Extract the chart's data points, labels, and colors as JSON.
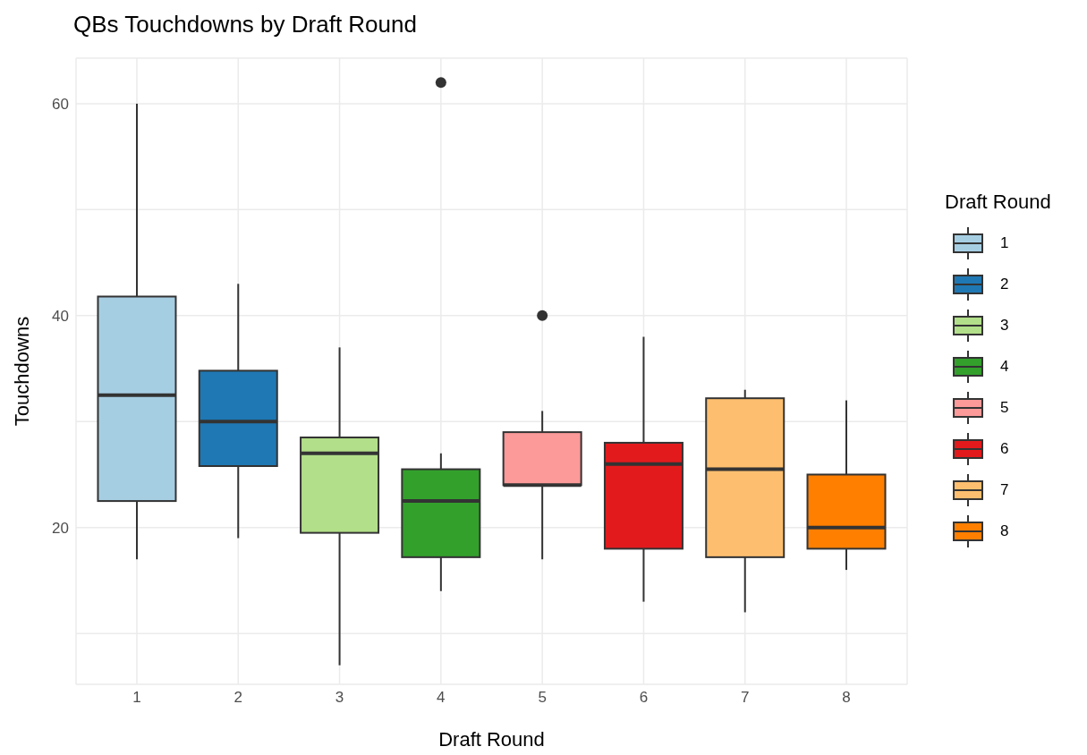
{
  "chart_data": {
    "type": "box",
    "title": "QBs Touchdowns by Draft Round",
    "xlabel": "Draft Round",
    "ylabel": "Touchdowns",
    "legend_title": "Draft Round",
    "legend": "right",
    "grid": true,
    "categories": [
      "1",
      "2",
      "3",
      "4",
      "5",
      "6",
      "7",
      "8"
    ],
    "series": [
      {
        "name": "1",
        "color": "#a6cee3",
        "boxes": [
          {
            "low": 17,
            "q1": 22.5,
            "median": 32.5,
            "q3": 41.8,
            "high": 60
          },
          null,
          null,
          null,
          null,
          null,
          null,
          null
        ]
      },
      {
        "name": "2",
        "color": "#1f78b4",
        "boxes": [
          null,
          {
            "low": 19,
            "q1": 25.8,
            "median": 30,
            "q3": 34.8,
            "high": 43
          },
          null,
          null,
          null,
          null,
          null,
          null
        ]
      },
      {
        "name": "3",
        "color": "#b2df8a",
        "boxes": [
          null,
          null,
          {
            "low": 7,
            "q1": 19.5,
            "median": 27,
            "q3": 28.5,
            "high": 37
          },
          null,
          null,
          null,
          null,
          null
        ]
      },
      {
        "name": "4",
        "color": "#33a02c",
        "boxes": [
          null,
          null,
          null,
          {
            "low": 14,
            "q1": 17.2,
            "median": 22.5,
            "q3": 25.5,
            "high": 27,
            "outliers": [
              62
            ]
          },
          null,
          null,
          null,
          null
        ]
      },
      {
        "name": "5",
        "color": "#fb9a99",
        "boxes": [
          null,
          null,
          null,
          null,
          {
            "low": 17,
            "q1": 24,
            "median": 24,
            "q3": 29,
            "high": 31,
            "outliers": [
              40
            ]
          },
          null,
          null,
          null
        ]
      },
      {
        "name": "6",
        "color": "#e31a1c",
        "boxes": [
          null,
          null,
          null,
          null,
          null,
          {
            "low": 13,
            "q1": 18,
            "median": 26,
            "q3": 28,
            "high": 38
          },
          null,
          null
        ]
      },
      {
        "name": "7",
        "color": "#fdbf6f",
        "boxes": [
          null,
          null,
          null,
          null,
          null,
          null,
          {
            "low": 12,
            "q1": 17.2,
            "median": 25.5,
            "q3": 32.2,
            "high": 33
          },
          null
        ]
      },
      {
        "name": "8",
        "color": "#ff7f00",
        "boxes": [
          null,
          null,
          null,
          null,
          null,
          null,
          null,
          {
            "low": 16,
            "q1": 18,
            "median": 20,
            "q3": 25,
            "high": 32
          }
        ]
      }
    ],
    "ylim": [
      5.2,
      64.3
    ],
    "yticks": [
      {
        "value": 10,
        "label": null
      },
      20,
      {
        "value": 30,
        "label": null
      },
      40,
      {
        "value": 50,
        "label": null
      },
      60
    ]
  }
}
